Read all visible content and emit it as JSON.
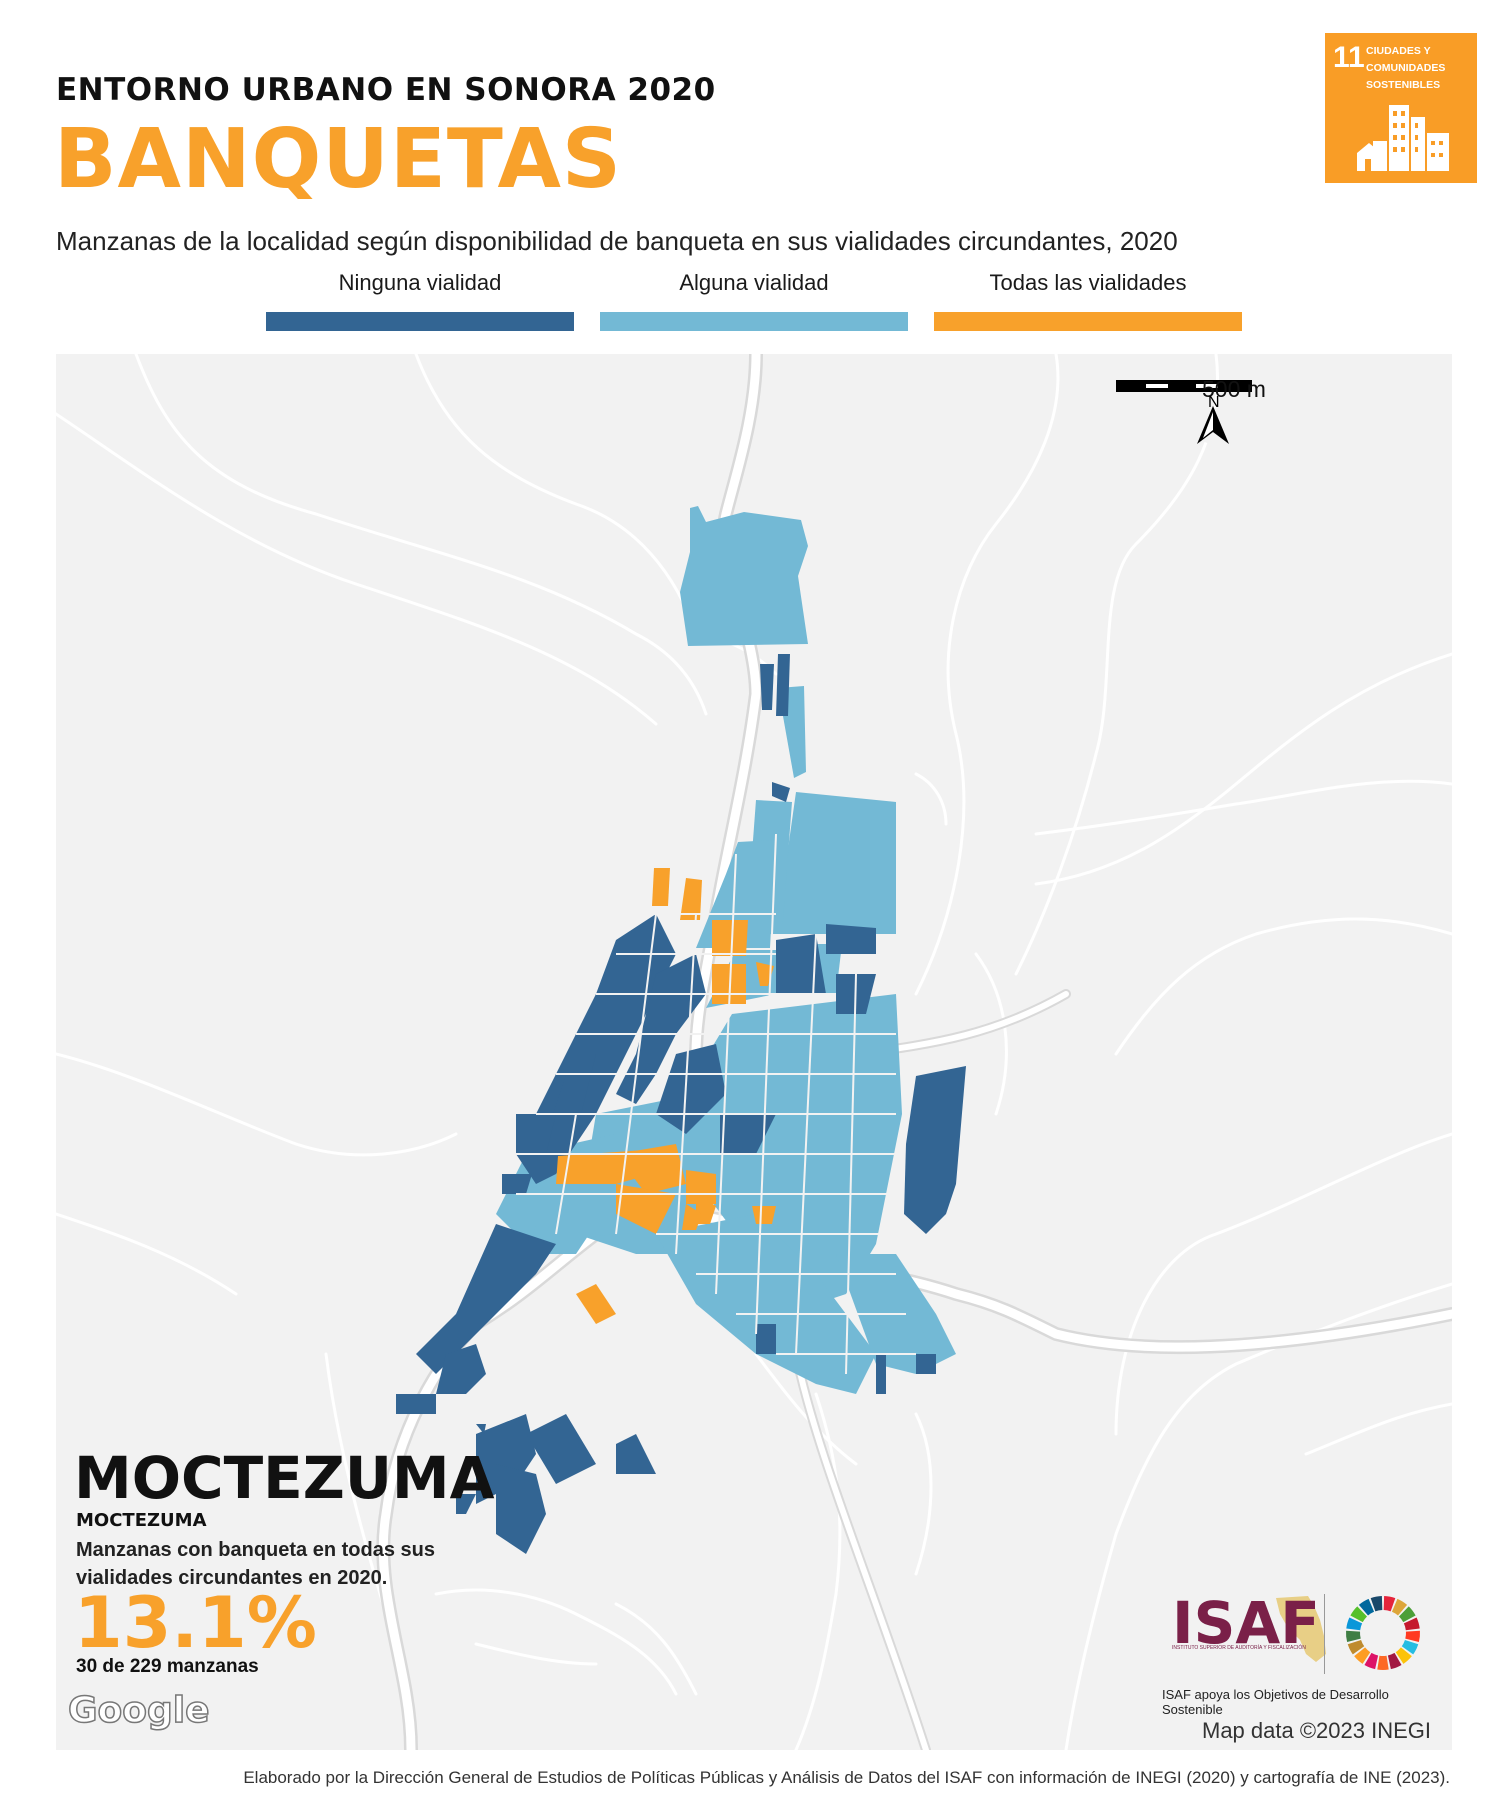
{
  "header": {
    "kicker": "ENTORNO URBANO EN SONORA 2020",
    "title": "BANQUETAS",
    "subtitle": "Manzanas de la localidad según disponibilidad de banqueta en sus vialidades circundantes, 2020"
  },
  "sdg_badge": {
    "number": "11",
    "text": "CIUDADES Y\nCOMUNIDADES\nSOSTENIBLES",
    "color": "#f99d26"
  },
  "legend": [
    {
      "label": "Ninguna vialidad",
      "color": "#336593"
    },
    {
      "label": "Alguna vialidad",
      "color": "#73b9d5"
    },
    {
      "label": "Todas las vialidades",
      "color": "#f8a12b"
    }
  ],
  "map": {
    "scale_label": "500 m",
    "north_label": "N",
    "attribution": "Map data ©2023 INEGI",
    "google_label": "Google",
    "background_color": "#f2f2f2",
    "road_color": "#ffffff"
  },
  "locality": {
    "name": "MOCTEZUMA",
    "municipality": "MOCTEZUMA",
    "description": "Manzanas con banqueta en todas sus vialidades circundantes en 2020.",
    "percentage": "13.1%",
    "count": "30 de 229 manzanas"
  },
  "credits": {
    "isaf_logo": "ISAF",
    "isaf_subtitle": "INSTITUTO SUPERIOR DE AUDITORÍA Y FISCALIZACIÓN",
    "isaf_caption": "ISAF apoya los Objetivos de Desarrollo Sostenible",
    "footer": "Elaborado por la Dirección General de Estudios de Políticas Públicas y Análisis de Datos del ISAF con información de INEGI (2020) y cartografía de INE (2023)."
  }
}
